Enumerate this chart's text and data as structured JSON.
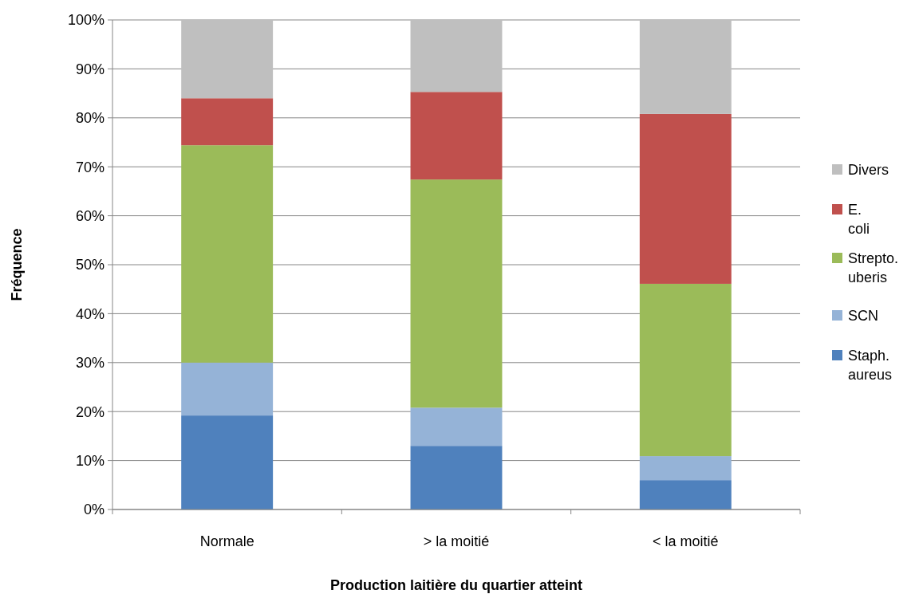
{
  "chart_data": {
    "type": "bar",
    "stacked": true,
    "xlabel": "Production laitière du quartier atteint",
    "ylabel": "Fréquence",
    "categories": [
      "Normale",
      "> la moitié",
      "< la moitié"
    ],
    "series": [
      {
        "name": "Staph. aureus",
        "color": "#4f81bd",
        "values": [
          19.2,
          13.0,
          6.0
        ]
      },
      {
        "name": "SCN",
        "color": "#95b3d7",
        "values": [
          10.8,
          7.8,
          4.9
        ]
      },
      {
        "name": "Strepto. uberis",
        "color": "#9bbb59",
        "values": [
          44.4,
          46.6,
          35.2
        ]
      },
      {
        "name": "E. coli",
        "color": "#c0504d",
        "values": [
          9.6,
          17.9,
          34.7
        ]
      },
      {
        "name": "Divers",
        "color": "#bfbfbf",
        "values": [
          16.0,
          14.7,
          19.2
        ]
      }
    ],
    "ylim": [
      0,
      100
    ],
    "yticks": [
      {
        "value": 0,
        "label": "0%"
      },
      {
        "value": 10,
        "label": "10%"
      },
      {
        "value": 20,
        "label": "20%"
      },
      {
        "value": 30,
        "label": "30%"
      },
      {
        "value": 40,
        "label": "40%"
      },
      {
        "value": 50,
        "label": "50%"
      },
      {
        "value": 60,
        "label": "60%"
      },
      {
        "value": 70,
        "label": "70%"
      },
      {
        "value": 80,
        "label": "80%"
      },
      {
        "value": 90,
        "label": "90%"
      },
      {
        "value": 100,
        "label": "100%"
      }
    ],
    "grid": "y",
    "legend": "right"
  }
}
